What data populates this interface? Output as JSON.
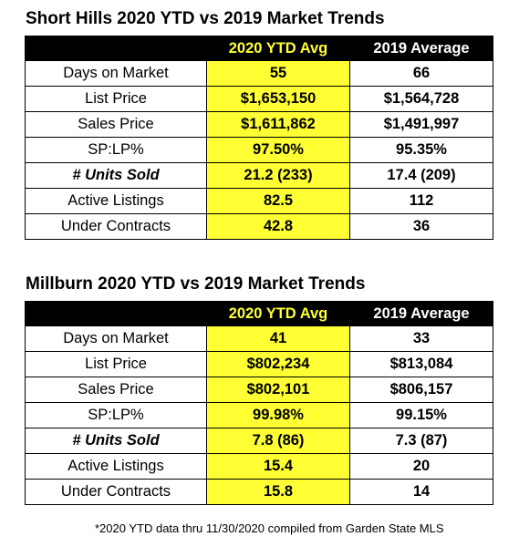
{
  "tables": [
    {
      "title": "Short Hills 2020 YTD vs 2019 Market Trends",
      "columns": [
        "",
        "2020 YTD Avg",
        "2019 Average"
      ],
      "rows": [
        {
          "metric": "Days on Market",
          "v2020": "55",
          "v2019": "66",
          "emphasis": false
        },
        {
          "metric": "List Price",
          "v2020": "$1,653,150",
          "v2019": "$1,564,728",
          "emphasis": false
        },
        {
          "metric": "Sales Price",
          "v2020": "$1,611,862",
          "v2019": "$1,491,997",
          "emphasis": false
        },
        {
          "metric": "SP:LP%",
          "v2020": "97.50%",
          "v2019": "95.35%",
          "emphasis": false
        },
        {
          "metric": "# Units Sold",
          "v2020": "21.2 (233)",
          "v2019": "17.4 (209)",
          "emphasis": true
        },
        {
          "metric": "Active Listings",
          "v2020": "82.5",
          "v2019": "112",
          "emphasis": false
        },
        {
          "metric": "Under Contracts",
          "v2020": "42.8",
          "v2019": "36",
          "emphasis": false
        }
      ]
    },
    {
      "title": "Millburn 2020 YTD vs 2019 Market Trends",
      "columns": [
        "",
        "2020 YTD Avg",
        "2019 Average"
      ],
      "rows": [
        {
          "metric": "Days on Market",
          "v2020": "41",
          "v2019": "33",
          "emphasis": false
        },
        {
          "metric": "List Price",
          "v2020": "$802,234",
          "v2019": "$813,084",
          "emphasis": false
        },
        {
          "metric": "Sales Price",
          "v2020": "$802,101",
          "v2019": "$806,157",
          "emphasis": false
        },
        {
          "metric": "SP:LP%",
          "v2020": "99.98%",
          "v2019": "99.15%",
          "emphasis": false
        },
        {
          "metric": "# Units Sold",
          "v2020": "7.8 (86)",
          "v2019": "7.3 (87)",
          "emphasis": true
        },
        {
          "metric": "Active Listings",
          "v2020": "15.4",
          "v2019": "20",
          "emphasis": false
        },
        {
          "metric": "Under Contracts",
          "v2020": "15.8",
          "v2019": "14",
          "emphasis": false
        }
      ]
    }
  ],
  "footnote": "*2020 YTD data thru 11/30/2020 compiled from Garden State MLS",
  "colors": {
    "highlight": "#ffff33",
    "header_bg": "#000000"
  }
}
